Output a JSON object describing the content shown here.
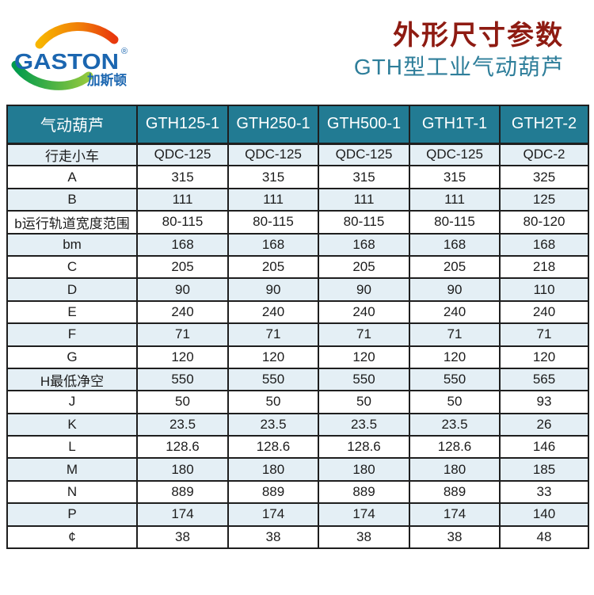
{
  "logo": {
    "brand": "GASTON",
    "registered": "®",
    "brand_cn": "加斯顿",
    "arc_top_colors": [
      "#F7B500",
      "#E8380D"
    ],
    "arc_bottom_colors": [
      "#009B4C",
      "#95C93D"
    ],
    "brand_color": "#1B66B0"
  },
  "header": {
    "title": "外形尺寸参数",
    "subtitle": "GTH型工业气动葫芦"
  },
  "colors": {
    "accent_teal": "#227B93",
    "row_alt": "#E4EFF5",
    "grid": "#1E1E1E",
    "title_red": "#8E1B12",
    "subtitle_teal": "#2E7E9A",
    "brand_blue": "#1B66B0"
  },
  "table": {
    "columns": [
      "气动葫芦",
      "GTH125-1",
      "GTH250-1",
      "GTH500-1",
      "GTH1T-1",
      "GTH2T-2"
    ],
    "rows": [
      [
        "行走小车",
        "QDC-125",
        "QDC-125",
        "QDC-125",
        "QDC-125",
        "QDC-2"
      ],
      [
        "A",
        "315",
        "315",
        "315",
        "315",
        "325"
      ],
      [
        "B",
        "111",
        "111",
        "111",
        "111",
        "125"
      ],
      [
        "b运行轨道宽度范围",
        "80-115",
        "80-115",
        "80-115",
        "80-115",
        "80-120"
      ],
      [
        "bm",
        "168",
        "168",
        "168",
        "168",
        "168"
      ],
      [
        "C",
        "205",
        "205",
        "205",
        "205",
        "218"
      ],
      [
        "D",
        "90",
        "90",
        "90",
        "90",
        "110"
      ],
      [
        "E",
        "240",
        "240",
        "240",
        "240",
        "240"
      ],
      [
        "F",
        "71",
        "71",
        "71",
        "71",
        "71"
      ],
      [
        "G",
        "120",
        "120",
        "120",
        "120",
        "120"
      ],
      [
        "H最低净空",
        "550",
        "550",
        "550",
        "550",
        "565"
      ],
      [
        "J",
        "50",
        "50",
        "50",
        "50",
        "93"
      ],
      [
        "K",
        "23.5",
        "23.5",
        "23.5",
        "23.5",
        "26"
      ],
      [
        "L",
        "128.6",
        "128.6",
        "128.6",
        "128.6",
        "146"
      ],
      [
        "M",
        "180",
        "180",
        "180",
        "180",
        "185"
      ],
      [
        "N",
        "889",
        "889",
        "889",
        "889",
        "33"
      ],
      [
        "P",
        "174",
        "174",
        "174",
        "174",
        "140"
      ],
      [
        "¢",
        "38",
        "38",
        "38",
        "38",
        "48"
      ]
    ]
  }
}
